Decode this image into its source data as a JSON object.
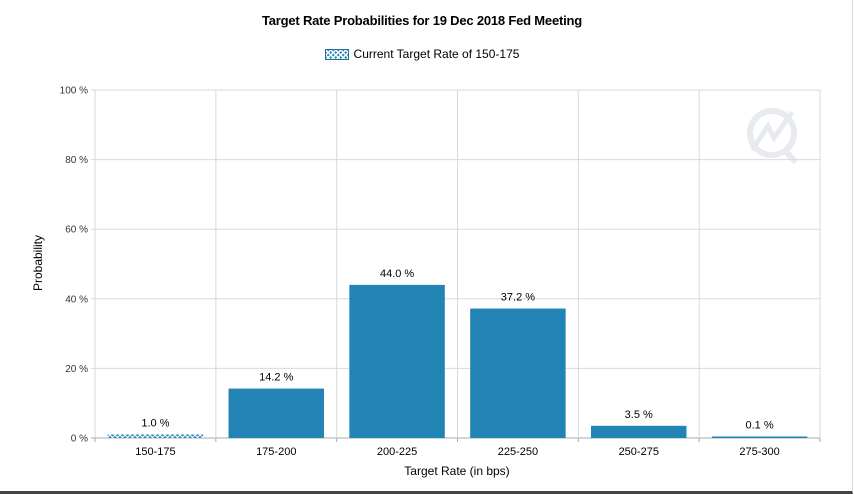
{
  "chart_data": {
    "type": "bar",
    "title": "Target Rate Probabilities for 19 Dec 2018 Fed Meeting",
    "xlabel": "Target Rate (in bps)",
    "ylabel": "Probability",
    "ylim": [
      0,
      100
    ],
    "yticks": [
      0,
      20,
      40,
      60,
      80,
      100
    ],
    "ytick_labels": [
      "0 %",
      "20 %",
      "40 %",
      "60 %",
      "80 %",
      "100 %"
    ],
    "grid": true,
    "legend_position": "top-center",
    "categories": [
      "150-175",
      "175-200",
      "200-225",
      "225-250",
      "250-275",
      "275-300"
    ],
    "values": [
      1.0,
      14.2,
      44.0,
      37.2,
      3.5,
      0.1
    ],
    "value_labels": [
      "1.0 %",
      "14.2 %",
      "44.0 %",
      "37.2 %",
      "3.5 %",
      "0.1 %"
    ],
    "current_target_category": "150-175",
    "legend": [
      {
        "name": "Current Target Rate of 150-175",
        "pattern": "crosshatch"
      }
    ],
    "colors": {
      "bar": "#2283b5",
      "grid": "#d9d9d9",
      "axis": "#aaaaaa"
    }
  }
}
